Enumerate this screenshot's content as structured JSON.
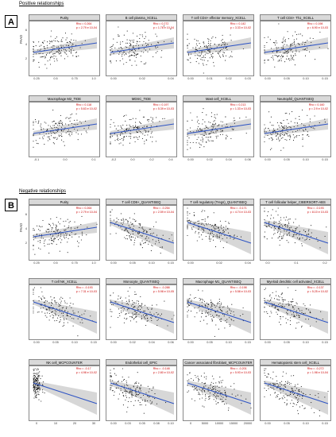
{
  "section_a": {
    "badge": "A",
    "title": "Positive relationships"
  },
  "section_b": {
    "badge": "B",
    "title": "Negative relationships"
  },
  "ylabel": "PAAD",
  "colors": {
    "point": "#111111",
    "line": "#2e54c4",
    "band": "#bdbdbd",
    "stats": "#cc0000",
    "strip": "#d9d9d9"
  },
  "chart_data": [
    {
      "type": "scatter",
      "title": "Purity",
      "rho": "Rho = 0.264",
      "p": "p = 2.79 e 10-04",
      "trend": "up",
      "x_ticks": [
        "0.25",
        "0.5",
        "0.75",
        "1.0"
      ],
      "y_ticks": [
        "6",
        "4",
        "2"
      ]
    },
    {
      "type": "scatter",
      "title": "B cell plasma_XCELL",
      "rho": "Rho = 0.272",
      "p": "p = 1.78 e 10-04",
      "trend": "up",
      "x_ticks": [
        "0.00",
        "0.02",
        "0.04"
      ]
    },
    {
      "type": "scatter",
      "title": "T cell CD4+ effector memory_XCELL",
      "rho": "Rho = 0.142",
      "p": "p = 3.33 e 10-02",
      "trend": "up",
      "x_ticks": [
        "0.00",
        "0.01",
        "0.02",
        "0.03"
      ]
    },
    {
      "type": "scatter",
      "title": "T cell CD4+ Th1_XCELL",
      "rho": "Rho = 0.198",
      "p": "p = 6.90 e 10-03",
      "trend": "up",
      "x_ticks": [
        "0.00",
        "0.05",
        "0.10",
        "0.15"
      ]
    },
    {
      "type": "scatter",
      "title": "Macrophage M2_TIDE",
      "rho": "Rho = 0.118",
      "p": "p = 5.63 e 10-02",
      "trend": "up",
      "x_ticks": [
        "-0.1",
        "0.0",
        "0.1"
      ]
    },
    {
      "type": "scatter",
      "title": "MDSC_TIDE",
      "rho": "Rho = 0.197",
      "p": "p = 5.39 e 10-03",
      "trend": "up",
      "x_ticks": [
        "-0.2",
        "0.0",
        "0.2",
        "0.4"
      ]
    },
    {
      "type": "scatter",
      "title": "Mast cell_XCELL",
      "rho": "Rho = 0.213",
      "p": "p = 1.33 e 10-03",
      "trend": "up",
      "x_ticks": [
        "0.00",
        "0.02",
        "0.04",
        "0.06"
      ]
    },
    {
      "type": "scatter",
      "title": "Neutrophil_QUANTISEQ",
      "rho": "Rho = 0.160",
      "p": "p = 2.9 e 10-02",
      "trend": "up",
      "x_ticks": [
        "0.00",
        "0.05",
        "0.10",
        "0.15"
      ]
    },
    {
      "type": "scatter",
      "title": "Purity",
      "rho": "Rho = 0.264",
      "p": "p = 2.79 e 10-04",
      "trend": "up",
      "x_ticks": [
        "0.25",
        "0.5",
        "0.75",
        "1.0"
      ],
      "y_ticks": [
        "6",
        "4",
        "2"
      ]
    },
    {
      "type": "scatter",
      "title": "T cell CD8+_QUANTISEQ",
      "rho": "Rho = -0.254",
      "p": "p = 2.59 e 10-04",
      "trend": "down",
      "x_ticks": [
        "0.00",
        "0.05",
        "0.10",
        "0.15"
      ]
    },
    {
      "type": "scatter",
      "title": "T cell regulatory (Tregs)_QUANTISEQ",
      "rho": "Rho = -0.171",
      "p": "p = 4.74 e 10-03",
      "trend": "down",
      "x_ticks": [
        "0.00",
        "0.02",
        "0.04"
      ]
    },
    {
      "type": "scatter",
      "title": "T cell follicular helper_CIBERSORT-ABS",
      "rho": "Rho = -0.193",
      "p": "p = 8.10 e 10-03",
      "trend": "down",
      "x_ticks": [
        "0.0",
        "0.1",
        "0.2"
      ]
    },
    {
      "type": "scatter",
      "title": "T cell NK_XCELL",
      "rho": "Rho = -0.193",
      "p": "p = 7.31 e 10-03",
      "trend": "down",
      "x_ticks": [
        "0.00",
        "0.05",
        "0.10",
        "0.15"
      ]
    },
    {
      "type": "scatter",
      "title": "Monocyte_QUANTISEQ",
      "rho": "Rho = -0.288",
      "p": "p = 5.98 e 10-05",
      "trend": "down",
      "x_ticks": [
        "0.00",
        "0.02",
        "0.04",
        "0.06"
      ]
    },
    {
      "type": "scatter",
      "title": "Macrophage M1_QUANTISEQ",
      "rho": "Rho = -0.198",
      "p": "p = 5.58 e 10-03",
      "trend": "down",
      "x_ticks": [
        "0.00",
        "0.05",
        "0.10",
        "0.15"
      ]
    },
    {
      "type": "scatter",
      "title": "Myeloid dendritic cell activated_XCELL",
      "rho": "Rho = -0.137",
      "p": "p = 5.25 e 10-02",
      "trend": "down",
      "x_ticks": [
        "0.00",
        "0.05",
        "0.10",
        "0.15"
      ]
    },
    {
      "type": "scatter",
      "title": "NK cell_MCPCOUNTER",
      "rho": "Rho = -0.17",
      "p": "p = 4.98 e 10-02",
      "trend": "down",
      "x_ticks": [
        "0",
        "10",
        "20",
        "30"
      ]
    },
    {
      "type": "scatter",
      "title": "Endothelial cell_EPIC",
      "rho": "Rho = -0.148",
      "p": "p = 2.80 e 10-02",
      "trend": "down",
      "x_ticks": [
        "0.00",
        "0.03",
        "0.05",
        "0.08",
        "0.10"
      ]
    },
    {
      "type": "scatter",
      "title": "Cancer associated fibroblast_MCPCOUNTER",
      "rho": "Rho = -0.201",
      "p": "p = 5.93 e 10-03",
      "trend": "down",
      "x_ticks": [
        "0",
        "5000",
        "10000",
        "15000",
        "20000"
      ]
    },
    {
      "type": "scatter",
      "title": "Hematopoietic stem cell_XCELL",
      "rho": "Rho = -0.272",
      "p": "p = 1.98 e 10-04",
      "trend": "down",
      "x_ticks": [
        "0.00",
        "0.05",
        "0.10",
        "0.15"
      ]
    }
  ]
}
